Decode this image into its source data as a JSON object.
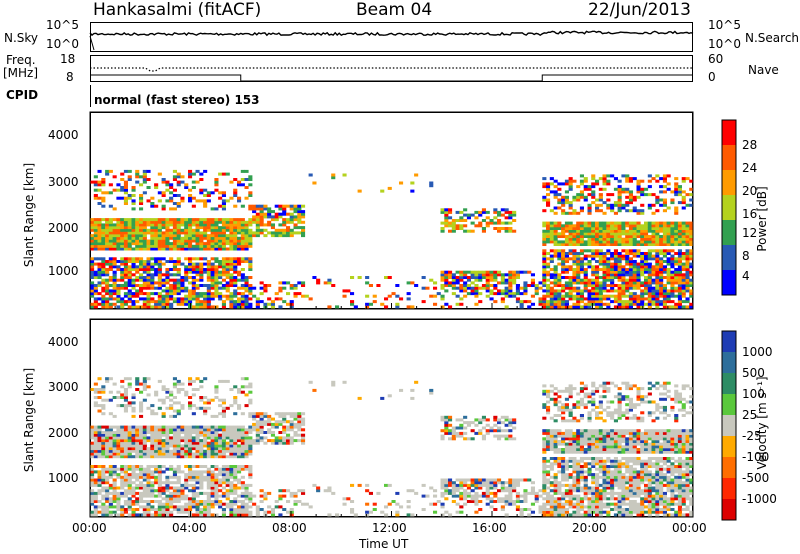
{
  "header": {
    "title": "Hankasalmi (fitACF)",
    "beam": "Beam 04",
    "date": "22/Jun/2013"
  },
  "noise_panel": {
    "left_label": "N.Sky",
    "right_label": "N.Search",
    "left_ticks": [
      "10^5",
      "10^0"
    ],
    "right_ticks": [
      "10^5",
      "10^0"
    ]
  },
  "freq_panel": {
    "left_label_top": "Freq.",
    "left_label_bottom": "[MHz]",
    "left_ticks": [
      "18",
      "8"
    ],
    "right_ticks": [
      "60",
      "0"
    ],
    "right_label": "Nave"
  },
  "cpid_panel": {
    "label": "CPID",
    "mode_text": "normal (fast stereo) 153"
  },
  "power_panel": {
    "ylabel": "Slant Range [km]",
    "cbar_label": "Power [dB]",
    "cbar_ticks": [
      "28",
      "24",
      "20",
      "16",
      "12",
      "8",
      "4"
    ],
    "colors": [
      "#ff0000",
      "#ff5a00",
      "#ff9b00",
      "#b4d21e",
      "#32a050",
      "#285ab4",
      "#0000ff"
    ]
  },
  "velocity_panel": {
    "ylabel": "Slant Range [km]",
    "cbar_label": "Velocity [m s⁻¹]",
    "cbar_ticks": [
      "1000",
      "500",
      "100",
      "25",
      "-25",
      "-100",
      "-500",
      "-1000"
    ],
    "colors": [
      "#1e3cb4",
      "#2d6e9b",
      "#2d8c64",
      "#5ac83c",
      "#c8c8be",
      "#ffaa00",
      "#ff6e00",
      "#ff2800",
      "#dc0000"
    ]
  },
  "time_axis": {
    "label": "Time UT",
    "ticks": [
      "00:00",
      "04:00",
      "08:00",
      "12:00",
      "16:00",
      "20:00",
      "00:00"
    ]
  },
  "chart_data": {
    "type": "heatmap",
    "title": "Hankasalmi (fitACF)",
    "xlabel": "Time UT",
    "ylabel": "Slant Range [km]",
    "x_range": [
      "00:00",
      "24:00"
    ],
    "ylim": [
      180,
      4600
    ],
    "y_ticks": [
      1000,
      2000,
      3000,
      4000
    ],
    "frequency_MHz_approx": 12,
    "nave_range": [
      0,
      60
    ],
    "echo_regions": [
      {
        "start": "00:00",
        "end": "06:30",
        "range_km": [
          200,
          3300
        ],
        "note": "dense F-region echoes, band near 1800-2000 km"
      },
      {
        "start": "06:30",
        "end": "08:30",
        "range_km": [
          1800,
          2600
        ],
        "note": "narrowing band"
      },
      {
        "start": "14:00",
        "end": "17:00",
        "range_km": [
          500,
          2300
        ],
        "note": "patchy echoes"
      },
      {
        "start": "18:00",
        "end": "24:00",
        "range_km": [
          200,
          3200
        ],
        "note": "dense echoes, band near 1700-2000 km"
      }
    ],
    "power_db_scale": [
      4,
      8,
      12,
      16,
      20,
      24,
      28
    ],
    "velocity_scale_ms": [
      -1000,
      -500,
      -100,
      -25,
      25,
      100,
      500,
      1000
    ]
  }
}
